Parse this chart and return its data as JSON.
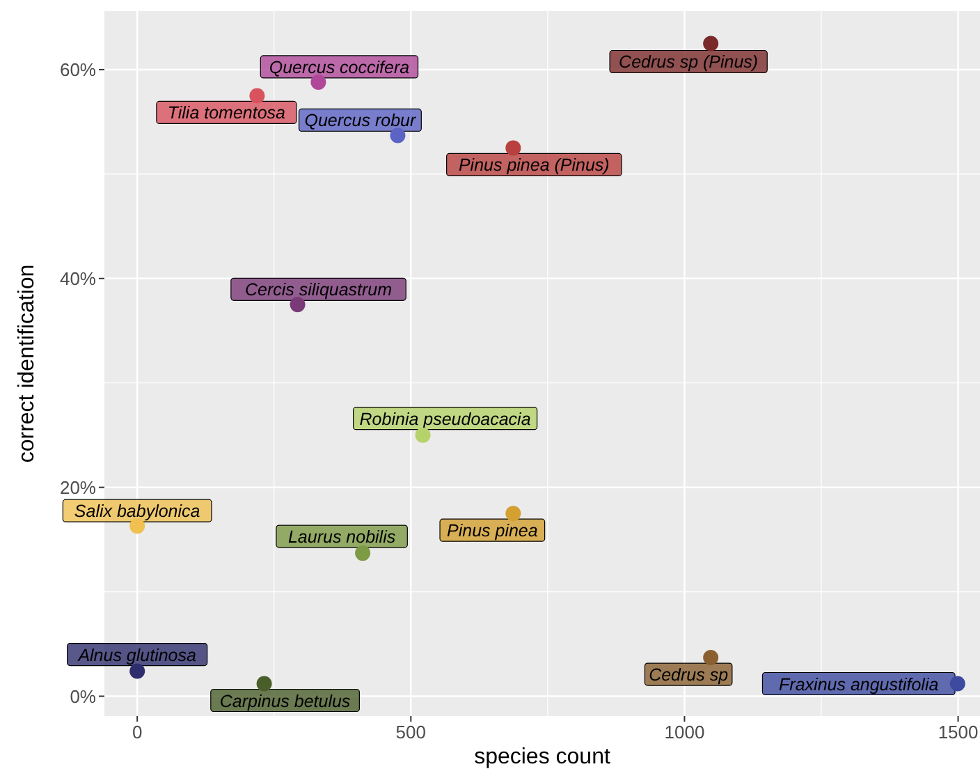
{
  "chart_data": {
    "type": "scatter",
    "xlabel": "species count",
    "ylabel": "correct identification",
    "xlim": [
      -60,
      1540
    ],
    "xticks": [
      0,
      500,
      1000,
      1500
    ],
    "ylim": [
      -1.9,
      65.6
    ],
    "yticks": [
      {
        "value": 0,
        "label": "0%"
      },
      {
        "value": 20,
        "label": "20%"
      },
      {
        "value": 40,
        "label": "40%"
      },
      {
        "value": 60,
        "label": "60%"
      }
    ],
    "grid": true,
    "marker": "circle",
    "series": [
      {
        "name": "Cedrus sp (Pinus)",
        "color": "#7a2a2a",
        "x": [
          1048
        ],
        "values": [
          62.5
        ]
      },
      {
        "name": "Quercus coccifera",
        "color": "#b0489a",
        "x": [
          331
        ],
        "values": [
          58.8
        ]
      },
      {
        "name": "Tilia tomentosa",
        "color": "#d9535f",
        "x": [
          219
        ],
        "values": [
          57.5
        ]
      },
      {
        "name": "Quercus robur",
        "color": "#5b63c4",
        "x": [
          476
        ],
        "values": [
          53.7
        ]
      },
      {
        "name": "Pinus pinea (Pinus)",
        "color": "#b8403f",
        "x": [
          687
        ],
        "values": [
          52.5
        ]
      },
      {
        "name": "Cercis siliquastrum",
        "color": "#7a3a78",
        "x": [
          293
        ],
        "values": [
          37.5
        ]
      },
      {
        "name": "Robinia pseudoacacia",
        "color": "#b5d36a",
        "x": [
          522
        ],
        "values": [
          25
        ]
      },
      {
        "name": "Salix babylonica",
        "color": "#f0c050",
        "x": [
          0
        ],
        "values": [
          16.3
        ]
      },
      {
        "name": "Pinus pinea",
        "color": "#d4a030",
        "x": [
          687
        ],
        "values": [
          17.5
        ]
      },
      {
        "name": "Laurus nobilis",
        "color": "#7d9a45",
        "x": [
          412
        ],
        "values": [
          13.7
        ]
      },
      {
        "name": "Alnus glutinosa",
        "color": "#2e2e6e",
        "x": [
          0
        ],
        "values": [
          2.4
        ]
      },
      {
        "name": "Carpinus betulus",
        "color": "#4a5e2a",
        "x": [
          232
        ],
        "values": [
          1.2
        ]
      },
      {
        "name": "Cedrus sp",
        "color": "#8a6030",
        "x": [
          1048
        ],
        "values": [
          3.7
        ]
      },
      {
        "name": "Fraxinus angustifolia",
        "color": "#3d4aa0",
        "x": [
          1499
        ],
        "values": [
          1.2
        ]
      }
    ]
  }
}
